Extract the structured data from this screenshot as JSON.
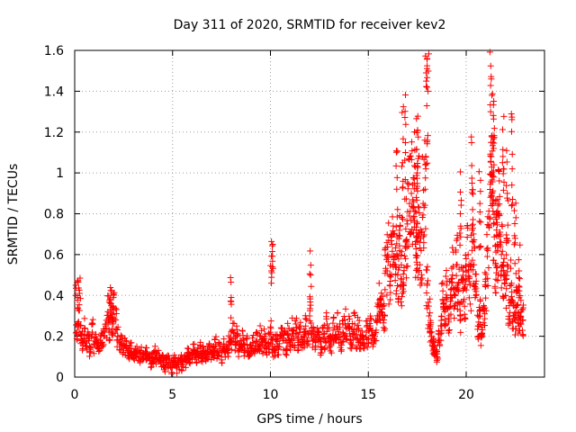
{
  "chart_data": {
    "type": "scatter",
    "title": "Day 311 of 2020, SRMTID for receiver kev2",
    "xlabel": "GPS time / hours",
    "ylabel": "SRMTID / TECUs",
    "xlim": [
      0,
      24
    ],
    "ylim": [
      0,
      1.6
    ],
    "x_ticks": [
      "0",
      "5",
      "10",
      "15",
      "20"
    ],
    "y_ticks": [
      "0",
      "0.2",
      "0.4",
      "0.6",
      "0.8",
      "1",
      "1.2",
      "1.4",
      "1.6"
    ],
    "grid": true,
    "marker": "+",
    "color": "#ff0000",
    "series": [
      {
        "name": "kev2",
        "x": [
          0.0,
          0.1,
          0.2,
          0.3,
          0.4,
          0.5,
          0.6,
          0.7,
          0.8,
          0.9,
          1.0,
          1.1,
          1.2,
          1.3,
          1.4,
          1.5,
          1.6,
          1.7,
          1.8,
          1.9,
          2.0,
          2.1,
          2.2,
          2.3,
          2.4,
          2.5,
          2.6,
          2.7,
          2.8,
          2.9,
          3.0,
          3.1,
          3.2,
          3.3,
          3.4,
          3.5,
          3.6,
          3.7,
          3.8,
          3.9,
          4.0,
          4.1,
          4.2,
          4.3,
          4.4,
          4.5,
          4.6,
          4.7,
          4.8,
          4.9,
          5.0,
          5.1,
          5.2,
          5.3,
          5.4,
          5.5,
          5.6,
          5.7,
          5.8,
          5.9,
          6.0,
          6.1,
          6.2,
          6.3,
          6.4,
          6.5,
          6.6,
          6.7,
          6.8,
          6.9,
          7.0,
          7.1,
          7.2,
          7.3,
          7.4,
          7.5,
          7.6,
          7.7,
          7.8,
          7.9,
          8.0,
          8.1,
          8.2,
          8.3,
          8.4,
          8.5,
          8.6,
          8.7,
          8.8,
          8.9,
          9.0,
          9.1,
          9.2,
          9.3,
          9.4,
          9.5,
          9.6,
          9.7,
          9.8,
          9.9,
          10.0,
          10.1,
          10.2,
          10.3,
          10.4,
          10.5,
          10.6,
          10.7,
          10.8,
          10.9,
          11.0,
          11.1,
          11.2,
          11.3,
          11.4,
          11.5,
          11.6,
          11.7,
          11.8,
          11.9,
          12.0,
          12.1,
          12.2,
          12.3,
          12.4,
          12.5,
          12.6,
          12.7,
          12.8,
          12.9,
          13.0,
          13.1,
          13.2,
          13.3,
          13.4,
          13.5,
          13.6,
          13.7,
          13.8,
          13.9,
          14.0,
          14.1,
          14.2,
          14.3,
          14.4,
          14.5,
          14.6,
          14.7,
          14.8,
          14.9,
          15.0,
          15.1,
          15.2,
          15.3,
          15.4,
          15.5,
          15.6,
          15.7,
          15.8,
          15.9,
          16.0,
          16.1,
          16.2,
          16.3,
          16.4,
          16.5,
          16.6,
          16.7,
          16.8,
          16.9,
          17.0,
          17.1,
          17.2,
          17.3,
          17.4,
          17.5,
          17.6,
          17.7,
          17.8,
          17.9,
          18.0,
          18.1,
          18.2,
          18.3,
          18.4,
          18.5,
          18.6,
          18.7,
          18.8,
          18.9,
          19.0,
          19.1,
          19.2,
          19.3,
          19.4,
          19.5,
          19.6,
          19.7,
          19.8,
          19.9,
          20.0,
          20.1,
          20.2,
          20.3,
          20.4,
          20.5,
          20.6,
          20.7,
          20.8,
          20.9,
          21.0,
          21.1,
          21.2,
          21.3,
          21.4,
          21.5,
          21.6,
          21.7,
          21.8,
          21.9,
          22.0,
          22.1,
          22.2,
          22.3,
          22.4,
          22.5,
          22.6,
          22.7,
          22.8,
          22.9,
          0.05,
          0.15,
          0.25,
          1.75,
          1.85,
          1.95,
          8.0,
          10.05,
          10.1,
          12.05,
          16.45,
          16.75,
          16.9,
          17.35,
          17.45,
          17.5,
          17.55,
          17.95,
          18.0,
          18.05,
          19.7,
          20.3,
          20.7,
          21.25,
          21.3,
          21.35,
          21.4,
          21.55,
          21.65,
          21.9,
          22.1,
          22.35,
          22.5,
          22.7
        ],
        "y": [
          0.28,
          0.22,
          0.27,
          0.21,
          0.18,
          0.24,
          0.15,
          0.19,
          0.12,
          0.22,
          0.16,
          0.19,
          0.14,
          0.18,
          0.17,
          0.2,
          0.26,
          0.32,
          0.3,
          0.27,
          0.33,
          0.28,
          0.2,
          0.17,
          0.16,
          0.14,
          0.15,
          0.13,
          0.12,
          0.14,
          0.12,
          0.11,
          0.13,
          0.1,
          0.12,
          0.09,
          0.11,
          0.12,
          0.1,
          0.08,
          0.1,
          0.13,
          0.09,
          0.11,
          0.07,
          0.08,
          0.06,
          0.09,
          0.07,
          0.05,
          0.06,
          0.08,
          0.05,
          0.07,
          0.09,
          0.06,
          0.1,
          0.08,
          0.12,
          0.09,
          0.11,
          0.13,
          0.1,
          0.12,
          0.14,
          0.11,
          0.13,
          0.1,
          0.12,
          0.15,
          0.11,
          0.13,
          0.16,
          0.12,
          0.14,
          0.1,
          0.15,
          0.12,
          0.13,
          0.16,
          0.18,
          0.22,
          0.17,
          0.2,
          0.14,
          0.15,
          0.19,
          0.13,
          0.16,
          0.12,
          0.14,
          0.17,
          0.13,
          0.18,
          0.15,
          0.2,
          0.16,
          0.19,
          0.14,
          0.17,
          0.22,
          0.16,
          0.13,
          0.18,
          0.15,
          0.2,
          0.24,
          0.18,
          0.14,
          0.21,
          0.17,
          0.23,
          0.19,
          0.26,
          0.18,
          0.22,
          0.16,
          0.2,
          0.25,
          0.18,
          0.3,
          0.22,
          0.2,
          0.17,
          0.24,
          0.19,
          0.15,
          0.21,
          0.18,
          0.26,
          0.2,
          0.16,
          0.23,
          0.19,
          0.25,
          0.21,
          0.17,
          0.22,
          0.28,
          0.2,
          0.24,
          0.18,
          0.21,
          0.26,
          0.19,
          0.23,
          0.17,
          0.2,
          0.16,
          0.22,
          0.19,
          0.24,
          0.2,
          0.18,
          0.23,
          0.3,
          0.38,
          0.35,
          0.28,
          0.52,
          0.6,
          0.45,
          0.65,
          0.7,
          0.55,
          0.5,
          0.62,
          0.48,
          0.42,
          0.58,
          0.75,
          0.85,
          0.9,
          0.78,
          0.65,
          0.55,
          0.7,
          0.62,
          0.85,
          0.92,
          0.45,
          0.3,
          0.22,
          0.15,
          0.12,
          0.1,
          0.18,
          0.25,
          0.38,
          0.32,
          0.45,
          0.28,
          0.4,
          0.5,
          0.35,
          0.55,
          0.42,
          0.3,
          0.48,
          0.38,
          0.52,
          0.6,
          0.45,
          0.72,
          0.55,
          0.4,
          0.25,
          0.3,
          0.2,
          0.35,
          0.45,
          0.62,
          0.78,
          0.9,
          0.75,
          0.55,
          0.65,
          0.7,
          0.6,
          0.5,
          0.4,
          0.55,
          0.35,
          0.45,
          0.3,
          0.28,
          0.35,
          0.25,
          0.32,
          0.28,
          0.4,
          0.39,
          0.41,
          0.22,
          0.36,
          0.28,
          0.39,
          0.52,
          0.54,
          0.5,
          0.92,
          1.05,
          1.1,
          0.95,
          0.88,
          1.0,
          1.07,
          1.49,
          1.42,
          1.4,
          0.8,
          0.95,
          0.85,
          1.3,
          1.18,
          1.15,
          1.12,
          0.72,
          0.8,
          1.02,
          0.9,
          1.02,
          0.68,
          0.52
        ]
      }
    ]
  }
}
